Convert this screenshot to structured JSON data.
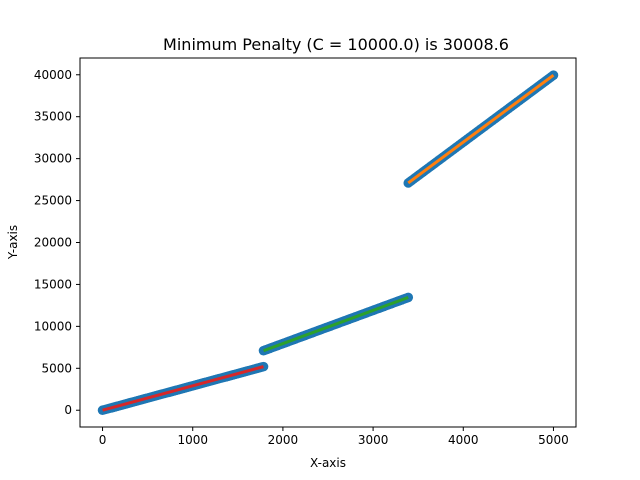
{
  "chart_data": {
    "type": "scatter",
    "title": "Minimum Penalty (C = 10000.0) is 30008.6",
    "xlabel": "X-axis",
    "ylabel": "Y-axis",
    "xlim": [
      -250,
      5250
    ],
    "ylim": [
      -2000,
      42000
    ],
    "x_ticks": [
      0,
      1000,
      2000,
      3000,
      4000,
      5000
    ],
    "y_ticks": [
      0,
      5000,
      10000,
      15000,
      20000,
      25000,
      30000,
      35000,
      40000
    ],
    "grid": false,
    "legend": "none",
    "points": {
      "color": "#1f77b4",
      "segments": [
        {
          "x": [
            0,
            1785
          ],
          "y": [
            0,
            5200
          ]
        },
        {
          "x": [
            1785,
            3390
          ],
          "y": [
            7100,
            13450
          ]
        },
        {
          "x": [
            3390,
            5000
          ],
          "y": [
            27100,
            39950
          ]
        }
      ]
    },
    "series": [
      {
        "color": "#d62728",
        "x": [
          0,
          1785
        ],
        "y": [
          0,
          5200
        ]
      },
      {
        "color": "#2ca02c",
        "x": [
          1785,
          3390
        ],
        "y": [
          7100,
          13450
        ]
      },
      {
        "color": "#ff7f0e",
        "x": [
          3390,
          5000
        ],
        "y": [
          27100,
          39950
        ]
      }
    ]
  }
}
